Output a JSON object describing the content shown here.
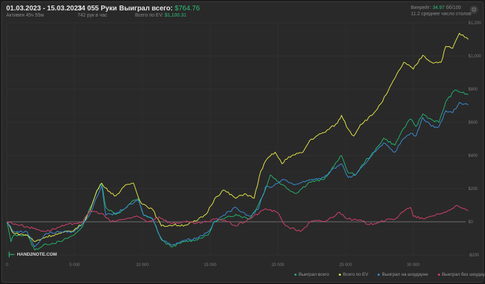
{
  "header": {
    "date_range": "01.03.2023 - 15.03.2023",
    "active": "Активен 45ч 55м",
    "hands": "34 055 Руки",
    "hands_per_hour": "742 рук в час",
    "won_label": "Выиграл всего:",
    "won_value": "$764.76",
    "ev_label": "Всего по EV:",
    "ev_value": "$1,100.31",
    "winrate_label": "Винрейт:",
    "winrate_value": "34.97",
    "winrate_unit": "бб/100",
    "tables": "11.2 среднее число столов",
    "settings_icon": "gear-icon"
  },
  "logo": {
    "text": "HAND2NOTE.COM"
  },
  "chart_data": {
    "type": "line",
    "xlim": [
      0,
      34055
    ],
    "ylim": [
      -200,
      1200
    ],
    "x_ticks": [
      {
        "v": 0,
        "label": "0"
      },
      {
        "v": 5000,
        "label": "5 000"
      },
      {
        "v": 10000,
        "label": "10 000"
      },
      {
        "v": 15000,
        "label": "15 000"
      },
      {
        "v": 20000,
        "label": "20 000"
      },
      {
        "v": 25000,
        "label": "25 000"
      },
      {
        "v": 30000,
        "label": "30 000"
      }
    ],
    "y_ticks": [
      {
        "v": 1200,
        "label": "$1,200"
      },
      {
        "v": 1000,
        "label": "$1,000"
      },
      {
        "v": 800,
        "label": "$800"
      },
      {
        "v": 600,
        "label": "$600"
      },
      {
        "v": 400,
        "label": "$400"
      },
      {
        "v": 200,
        "label": "$200"
      },
      {
        "v": 0,
        "label": "$0"
      },
      {
        "v": -200,
        "label": "-$200"
      }
    ],
    "grid": true,
    "legend_position": "bottom-right",
    "series": [
      {
        "name": "Выиграл всего",
        "color": "#22b46e",
        "points": [
          [
            0,
            0
          ],
          [
            300,
            -120
          ],
          [
            500,
            -80
          ],
          [
            1500,
            -80
          ],
          [
            2050,
            -170
          ],
          [
            2900,
            -135
          ],
          [
            3950,
            -120
          ],
          [
            4950,
            -80
          ],
          [
            5600,
            -25
          ],
          [
            6150,
            87
          ],
          [
            6650,
            185
          ],
          [
            7000,
            233
          ],
          [
            7300,
            87
          ],
          [
            8050,
            45
          ],
          [
            8850,
            87
          ],
          [
            9350,
            130
          ],
          [
            9700,
            140
          ],
          [
            10100,
            37
          ],
          [
            10750,
            17
          ],
          [
            11400,
            -108
          ],
          [
            12100,
            -150
          ],
          [
            13150,
            -120
          ],
          [
            13950,
            -108
          ],
          [
            14850,
            -80
          ],
          [
            15350,
            4
          ],
          [
            16000,
            17
          ],
          [
            16900,
            45
          ],
          [
            17900,
            17
          ],
          [
            18550,
            100
          ],
          [
            19100,
            200
          ],
          [
            19450,
            283
          ],
          [
            20300,
            225
          ],
          [
            21300,
            170
          ],
          [
            22350,
            240
          ],
          [
            23400,
            254
          ],
          [
            24400,
            366
          ],
          [
            24700,
            400
          ],
          [
            25200,
            296
          ],
          [
            25750,
            283
          ],
          [
            26450,
            366
          ],
          [
            27100,
            420
          ],
          [
            27800,
            504
          ],
          [
            28650,
            462
          ],
          [
            29150,
            546
          ],
          [
            29800,
            620
          ],
          [
            30200,
            575
          ],
          [
            30700,
            650
          ],
          [
            31350,
            616
          ],
          [
            31900,
            600
          ],
          [
            32400,
            725
          ],
          [
            33100,
            795
          ],
          [
            34055,
            765
          ]
        ]
      },
      {
        "name": "Всего по EV",
        "color": "#e6e64a",
        "points": [
          [
            0,
            0
          ],
          [
            500,
            -70
          ],
          [
            1500,
            -80
          ],
          [
            2050,
            -120
          ],
          [
            2900,
            -90
          ],
          [
            3950,
            -70
          ],
          [
            4950,
            -50
          ],
          [
            5600,
            -10
          ],
          [
            6150,
            70
          ],
          [
            6650,
            190
          ],
          [
            7000,
            233
          ],
          [
            7700,
            170
          ],
          [
            8050,
            158
          ],
          [
            8850,
            225
          ],
          [
            9350,
            233
          ],
          [
            9870,
            117
          ],
          [
            10750,
            75
          ],
          [
            11400,
            -25
          ],
          [
            12300,
            -20
          ],
          [
            13150,
            -20
          ],
          [
            13950,
            4
          ],
          [
            14700,
            45
          ],
          [
            15350,
            142
          ],
          [
            16000,
            192
          ],
          [
            16900,
            142
          ],
          [
            17550,
            170
          ],
          [
            18250,
            142
          ],
          [
            18750,
            308
          ],
          [
            19200,
            379
          ],
          [
            19800,
            420
          ],
          [
            20300,
            350
          ],
          [
            20800,
            392
          ],
          [
            21850,
            420
          ],
          [
            22350,
            490
          ],
          [
            22850,
            517
          ],
          [
            23400,
            538
          ],
          [
            24400,
            595
          ],
          [
            24700,
            642
          ],
          [
            25200,
            558
          ],
          [
            25600,
            517
          ],
          [
            26100,
            587
          ],
          [
            26950,
            642
          ],
          [
            27600,
            712
          ],
          [
            28000,
            767
          ],
          [
            28650,
            867
          ],
          [
            29300,
            962
          ],
          [
            30000,
            921
          ],
          [
            30700,
            1004
          ],
          [
            31350,
            962
          ],
          [
            32050,
            962
          ],
          [
            32400,
            1058
          ],
          [
            32900,
            1046
          ],
          [
            33400,
            1137
          ],
          [
            34055,
            1100
          ]
        ]
      },
      {
        "name": "Выиграл на шоудауне",
        "color": "#3a8ed8",
        "points": [
          [
            0,
            0
          ],
          [
            500,
            -60
          ],
          [
            1500,
            -60
          ],
          [
            2050,
            -150
          ],
          [
            2900,
            -70
          ],
          [
            3950,
            -60
          ],
          [
            4950,
            -60
          ],
          [
            5600,
            -10
          ],
          [
            6150,
            50
          ],
          [
            6650,
            150
          ],
          [
            7000,
            220
          ],
          [
            7300,
            40
          ],
          [
            8050,
            50
          ],
          [
            8850,
            90
          ],
          [
            9700,
            130
          ],
          [
            10100,
            40
          ],
          [
            10750,
            20
          ],
          [
            11400,
            -100
          ],
          [
            12100,
            -140
          ],
          [
            13150,
            -110
          ],
          [
            13950,
            -100
          ],
          [
            14850,
            -60
          ],
          [
            15350,
            0
          ],
          [
            16000,
            40
          ],
          [
            16900,
            87
          ],
          [
            17900,
            33
          ],
          [
            18550,
            75
          ],
          [
            19100,
            212
          ],
          [
            19600,
            212
          ],
          [
            20300,
            254
          ],
          [
            21300,
            225
          ],
          [
            22350,
            254
          ],
          [
            23400,
            267
          ],
          [
            24400,
            337
          ],
          [
            24700,
            350
          ],
          [
            25200,
            267
          ],
          [
            25750,
            283
          ],
          [
            26450,
            350
          ],
          [
            27100,
            420
          ],
          [
            27800,
            475
          ],
          [
            28650,
            420
          ],
          [
            29150,
            490
          ],
          [
            29800,
            533
          ],
          [
            30200,
            517
          ],
          [
            30700,
            629
          ],
          [
            31350,
            575
          ],
          [
            31900,
            575
          ],
          [
            32400,
            670
          ],
          [
            32900,
            658
          ],
          [
            33400,
            720
          ],
          [
            34055,
            704
          ]
        ]
      },
      {
        "name": "Выиграл без шоудауна",
        "color": "#d4416c",
        "points": [
          [
            0,
            0
          ],
          [
            1000,
            -20
          ],
          [
            2900,
            -58
          ],
          [
            3950,
            -30
          ],
          [
            4950,
            -10
          ],
          [
            5600,
            0
          ],
          [
            6150,
            67
          ],
          [
            7000,
            50
          ],
          [
            7700,
            0
          ],
          [
            8850,
            20
          ],
          [
            9700,
            30
          ],
          [
            10400,
            0
          ],
          [
            11250,
            30
          ],
          [
            12100,
            -10
          ],
          [
            13150,
            0
          ],
          [
            13950,
            -10
          ],
          [
            14850,
            0
          ],
          [
            15500,
            20
          ],
          [
            16350,
            0
          ],
          [
            16900,
            -25
          ],
          [
            17900,
            17
          ],
          [
            19100,
            79
          ],
          [
            19950,
            58
          ],
          [
            20600,
            -25
          ],
          [
            21650,
            -58
          ],
          [
            22500,
            4
          ],
          [
            23550,
            4
          ],
          [
            24550,
            58
          ],
          [
            25200,
            17
          ],
          [
            26250,
            4
          ],
          [
            26750,
            -17
          ],
          [
            27600,
            4
          ],
          [
            28650,
            17
          ],
          [
            29150,
            58
          ],
          [
            29800,
            87
          ],
          [
            30000,
            33
          ],
          [
            30850,
            17
          ],
          [
            31700,
            45
          ],
          [
            32400,
            58
          ],
          [
            33100,
            96
          ],
          [
            34055,
            67
          ]
        ]
      }
    ]
  }
}
